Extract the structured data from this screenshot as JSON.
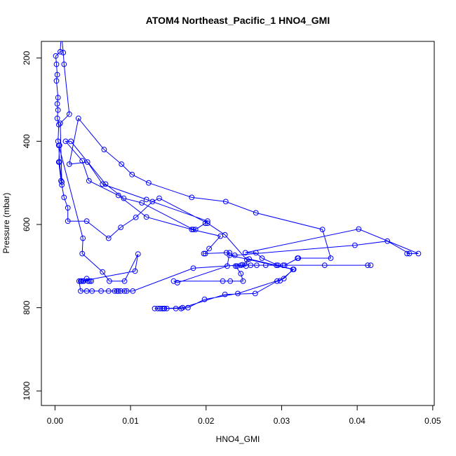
{
  "chart_data": {
    "type": "line",
    "title": "ATOM4 Northeast_Pacific_1 HNO4_GMI",
    "xlabel": "HNO4_GMI",
    "ylabel": "Pressure (mbar)",
    "xlim": [
      -0.0018,
      0.0502
    ],
    "ylim": [
      1035,
      160
    ],
    "y_reversed": true,
    "xticks": [
      0.0,
      0.01,
      0.02,
      0.03,
      0.04,
      0.05
    ],
    "xtick_labels": [
      "0.00",
      "0.01",
      "0.02",
      "0.03",
      "0.04",
      "0.05"
    ],
    "yticks": [
      200,
      400,
      600,
      800,
      1000
    ],
    "ytick_labels": [
      "200",
      "400",
      "600",
      "800",
      "1000"
    ],
    "color": "#0000ff",
    "marker": "open-circle",
    "series": [
      {
        "points": [
          [
            0.0008,
            150
          ],
          [
            0.0007,
            185
          ],
          [
            0.0001,
            195
          ],
          [
            0.0002,
            215
          ],
          [
            0.0003,
            240
          ],
          [
            0.0002,
            255
          ],
          [
            0.0004,
            295
          ],
          [
            0.0003,
            310
          ],
          [
            0.0004,
            325
          ],
          [
            0.0003,
            345
          ],
          [
            0.0005,
            360
          ],
          [
            0.0004,
            400
          ],
          [
            0.0006,
            410
          ],
          [
            0.0005,
            450
          ],
          [
            0.0008,
            495
          ],
          [
            0.0009,
            505
          ],
          [
            0.0012,
            535
          ],
          [
            0.0017,
            560
          ],
          [
            0.0017,
            592
          ],
          [
            0.0042,
            592
          ],
          [
            0.0071,
            633
          ],
          [
            0.0087,
            607
          ],
          [
            0.0107,
            583
          ],
          [
            0.0129,
            545
          ],
          [
            0.0138,
            537
          ],
          [
            0.0202,
            597
          ],
          [
            0.0225,
            625
          ],
          [
            0.0254,
            685
          ],
          [
            0.0253,
            700
          ],
          [
            0.0241,
            700
          ],
          [
            0.0239,
            700
          ],
          [
            0.0246,
            718
          ],
          [
            0.0249,
            736
          ],
          [
            0.0232,
            736
          ],
          [
            0.0222,
            736
          ],
          [
            0.0157,
            736
          ],
          [
            0.0162,
            740
          ],
          [
            0.0228,
            700
          ],
          [
            0.0231,
            668
          ],
          [
            0.0227,
            668
          ],
          [
            0.0197,
            670
          ],
          [
            0.0199,
            670
          ],
          [
            0.0204,
            658
          ],
          [
            0.0219,
            628
          ],
          [
            0.0181,
            612
          ],
          [
            0.0121,
            582
          ],
          [
            0.0084,
            530
          ],
          [
            0.0045,
            495
          ],
          [
            0.0036,
            447
          ],
          [
            0.0014,
            400
          ],
          [
            0.0021,
            400
          ],
          [
            0.0067,
            503
          ],
          [
            0.0091,
            537
          ],
          [
            0.0115,
            548
          ],
          [
            0.0183,
            612
          ],
          [
            0.0186,
            612
          ],
          [
            0.0199,
            597
          ],
          [
            0.0202,
            592
          ],
          [
            0.0121,
            540
          ],
          [
            0.0063,
            503
          ],
          [
            0.0043,
            450
          ],
          [
            0.0019,
            455
          ],
          [
            0.0031,
            345
          ],
          [
            0.0065,
            420
          ],
          [
            0.0088,
            455
          ],
          [
            0.0102,
            480
          ],
          [
            0.0124,
            500
          ],
          [
            0.0181,
            535
          ],
          [
            0.0226,
            545
          ],
          [
            0.0266,
            572
          ],
          [
            0.0354,
            612
          ],
          [
            0.0365,
            681
          ],
          [
            0.0321,
            681
          ],
          [
            0.0322,
            681
          ],
          [
            0.0304,
            698
          ],
          [
            0.0293,
            698
          ],
          [
            0.0279,
            698
          ],
          [
            0.0267,
            698
          ],
          [
            0.0259,
            698
          ],
          [
            0.0246,
            698
          ],
          [
            0.0418,
            698
          ],
          [
            0.0414,
            698
          ],
          [
            0.0357,
            698
          ],
          [
            0.0302,
            698
          ],
          [
            0.0295,
            698
          ],
          [
            0.0274,
            681
          ],
          [
            0.0266,
            668
          ],
          [
            0.0252,
            668
          ],
          [
            0.0402,
            611
          ],
          [
            0.0481,
            670
          ],
          [
            0.0466,
            670
          ],
          [
            0.0469,
            670
          ],
          [
            0.044,
            640
          ],
          [
            0.0397,
            650
          ],
          [
            0.0238,
            674
          ],
          [
            0.0231,
            674
          ],
          [
            0.0315,
            708
          ],
          [
            0.0303,
            730
          ],
          [
            0.0242,
            766
          ],
          [
            0.0198,
            780
          ],
          [
            0.0176,
            800
          ],
          [
            0.0167,
            802
          ],
          [
            0.016,
            802
          ],
          [
            0.0148,
            802
          ],
          [
            0.0142,
            802
          ],
          [
            0.0136,
            802
          ],
          [
            0.0132,
            802
          ],
          [
            0.0139,
            802
          ],
          [
            0.0144,
            802
          ],
          [
            0.0145,
            802
          ],
          [
            0.0169,
            800
          ],
          [
            0.0225,
            768
          ],
          [
            0.0265,
            766
          ],
          [
            0.0294,
            736
          ],
          [
            0.0298,
            735
          ],
          [
            0.0316,
            708
          ],
          [
            0.0257,
            683
          ],
          [
            0.0248,
            697
          ],
          [
            0.0183,
            705
          ],
          [
            0.0103,
            760
          ],
          [
            0.0095,
            760
          ],
          [
            0.0092,
            760
          ],
          [
            0.0087,
            760
          ],
          [
            0.0084,
            760
          ],
          [
            0.0082,
            760
          ],
          [
            0.0079,
            760
          ],
          [
            0.0071,
            760
          ],
          [
            0.0061,
            760
          ],
          [
            0.0049,
            760
          ],
          [
            0.0042,
            760
          ],
          [
            0.0034,
            760
          ],
          [
            0.0032,
            736
          ],
          [
            0.0035,
            736
          ],
          [
            0.0037,
            736
          ],
          [
            0.0046,
            736
          ],
          [
            0.0048,
            736
          ],
          [
            0.0044,
            736
          ],
          [
            0.0042,
            730
          ],
          [
            0.0038,
            736
          ],
          [
            0.0034,
            736
          ],
          [
            0.0035,
            736
          ],
          [
            0.0106,
            712
          ],
          [
            0.011,
            671
          ],
          [
            0.0092,
            736
          ],
          [
            0.0072,
            736
          ],
          [
            0.0063,
            714
          ],
          [
            0.0036,
            670
          ],
          [
            0.0037,
            633
          ],
          [
            0.0005,
            410
          ],
          [
            0.0006,
            450
          ],
          [
            0.0009,
            498
          ],
          [
            0.0007,
            357
          ],
          [
            0.0019,
            335
          ],
          [
            0.0012,
            215
          ],
          [
            0.0011,
            187
          ],
          [
            0.0009,
            150
          ]
        ]
      }
    ]
  }
}
